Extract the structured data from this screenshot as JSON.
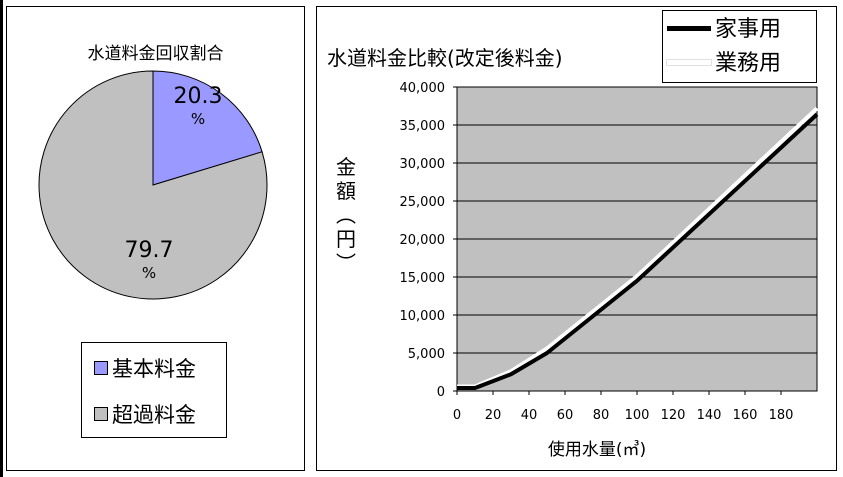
{
  "chart_data": [
    {
      "type": "pie",
      "title": "水道料金回収割合",
      "slices": [
        {
          "label": "基本料金",
          "value": 20.3,
          "display": "20.3",
          "unit": "%",
          "color": "#9999ff"
        },
        {
          "label": "超過料金",
          "value": 79.7,
          "display": "79.7",
          "unit": "%",
          "color": "#c0c0c0"
        }
      ],
      "legend_position": "bottom"
    },
    {
      "type": "line",
      "title": "水道料金比較(改定後料金)",
      "xlabel": "使用水量(㎥)",
      "ylabel_chars": [
        "金",
        "額",
        "︵",
        "円",
        "︶"
      ],
      "xlim": [
        0,
        200
      ],
      "ylim": [
        0,
        40000
      ],
      "xticks": [
        0,
        20,
        40,
        60,
        80,
        100,
        120,
        140,
        160,
        180
      ],
      "xtick_labels": [
        "0",
        "20",
        "40",
        "60",
        "80",
        "100",
        "120",
        "140",
        "160",
        "180"
      ],
      "yticks": [
        0,
        5000,
        10000,
        15000,
        20000,
        25000,
        30000,
        35000,
        40000
      ],
      "ytick_labels": [
        "0",
        "5,000",
        "10,000",
        "15,000",
        "20,000",
        "25,000",
        "30,000",
        "35,000",
        "40,000"
      ],
      "grid": "horizontal",
      "plot_background": "#c0c0c0",
      "legend_position": "top-right",
      "series": [
        {
          "name": "家事用",
          "color": "#000000",
          "x": [
            0,
            10,
            30,
            50,
            100,
            200
          ],
          "y": [
            400,
            400,
            2200,
            5000,
            14500,
            36400
          ]
        },
        {
          "name": "業務用",
          "color": "#ffffff",
          "x": [
            0,
            10,
            30,
            50,
            100,
            200
          ],
          "y": [
            600,
            600,
            2600,
            5600,
            15100,
            37200
          ]
        }
      ]
    }
  ]
}
